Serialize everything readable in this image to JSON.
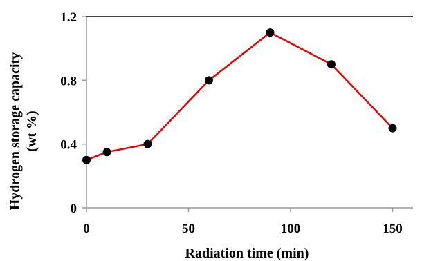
{
  "chart_data": {
    "type": "line",
    "title": "",
    "xlabel": "Radiation time (min)",
    "ylabel_lines": [
      "Hydrogen storage capacity",
      "(wt %)"
    ],
    "x": [
      0,
      10,
      30,
      60,
      90,
      120,
      150
    ],
    "series": [
      {
        "values": [
          0.3,
          0.35,
          0.4,
          0.8,
          1.1,
          0.9,
          0.5
        ],
        "color": "#ee0000",
        "marker_color": "#000000"
      }
    ],
    "xlim": [
      0,
      160
    ],
    "ylim": [
      0,
      1.2
    ],
    "x_ticks": [
      "0",
      "50",
      "100",
      "150"
    ],
    "y_ticks": [
      "0",
      "0.4",
      "0.8",
      "1.2"
    ],
    "grid": "top line at 1.2 only",
    "legend": "none"
  }
}
